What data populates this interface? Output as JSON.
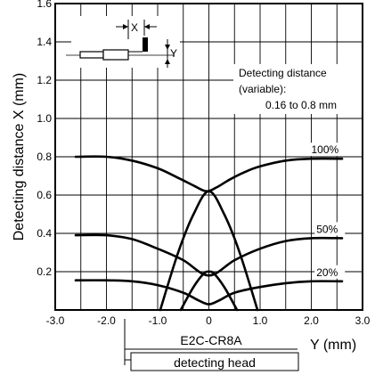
{
  "chart_data": {
    "type": "line",
    "xlabel": "Y (mm)",
    "ylabel": "Detecting distance X (mm)",
    "xlim": [
      -3.0,
      3.0
    ],
    "ylim": [
      0,
      1.6
    ],
    "x_ticks": [
      "-3.0",
      "-2.0",
      "-1.0",
      "0",
      "1.0",
      "2.0",
      "3.0"
    ],
    "y_ticks": [
      "0.2",
      "0.4",
      "0.6",
      "0.8",
      "1.0",
      "1.2",
      "1.4",
      "1.6"
    ],
    "grid": true,
    "annotation": {
      "line1": "Detecting distance",
      "line2": "(variable):",
      "line3": "0.16 to 0.8 mm"
    },
    "head_label": {
      "model": "E2C-CR8A",
      "name": "detecting head"
    },
    "inset": {
      "x_mark": "X",
      "y_mark": "Y"
    },
    "series": [
      {
        "name": "100%",
        "x": [
          -2.6,
          -2.0,
          -1.5,
          -1.0,
          -0.6,
          -0.3,
          -0.05,
          0.15,
          0.4,
          0.7,
          1.0,
          1.5,
          2.0,
          2.6
        ],
        "y": [
          0.8,
          0.8,
          0.78,
          0.74,
          0.69,
          0.65,
          0.62,
          0.64,
          0.68,
          0.72,
          0.75,
          0.78,
          0.79,
          0.79
        ]
      },
      {
        "name": "100% (side)",
        "x": [
          -0.95,
          -0.6,
          -0.3,
          0,
          0.3,
          0.6,
          0.95
        ],
        "y": [
          0.0,
          0.3,
          0.5,
          0.62,
          0.5,
          0.3,
          0.0
        ]
      },
      {
        "name": "50%",
        "x": [
          -2.6,
          -2.0,
          -1.5,
          -1.0,
          -0.5,
          0.0,
          0.5,
          1.0,
          1.5,
          2.0,
          2.6
        ],
        "y": [
          0.39,
          0.39,
          0.37,
          0.32,
          0.26,
          0.18,
          0.26,
          0.32,
          0.36,
          0.375,
          0.375
        ]
      },
      {
        "name": "50% (side)",
        "x": [
          -0.55,
          -0.3,
          -0.1,
          0,
          0.1,
          0.3,
          0.55
        ],
        "y": [
          0.0,
          0.12,
          0.19,
          0.2,
          0.19,
          0.12,
          0.0
        ]
      },
      {
        "name": "20%",
        "x": [
          -2.6,
          -2.0,
          -1.5,
          -1.0,
          -0.5,
          -0.2,
          0.0,
          0.2,
          0.5,
          1.0,
          1.5,
          2.0,
          2.6
        ],
        "y": [
          0.155,
          0.155,
          0.15,
          0.13,
          0.09,
          0.05,
          0.03,
          0.05,
          0.09,
          0.12,
          0.14,
          0.15,
          0.15
        ]
      }
    ],
    "series_labels": [
      {
        "text": "100%",
        "x": 2.0,
        "y": 0.79
      },
      {
        "text": "50%",
        "x": 2.1,
        "y": 0.375
      },
      {
        "text": "20%",
        "x": 2.1,
        "y": 0.15
      }
    ]
  }
}
